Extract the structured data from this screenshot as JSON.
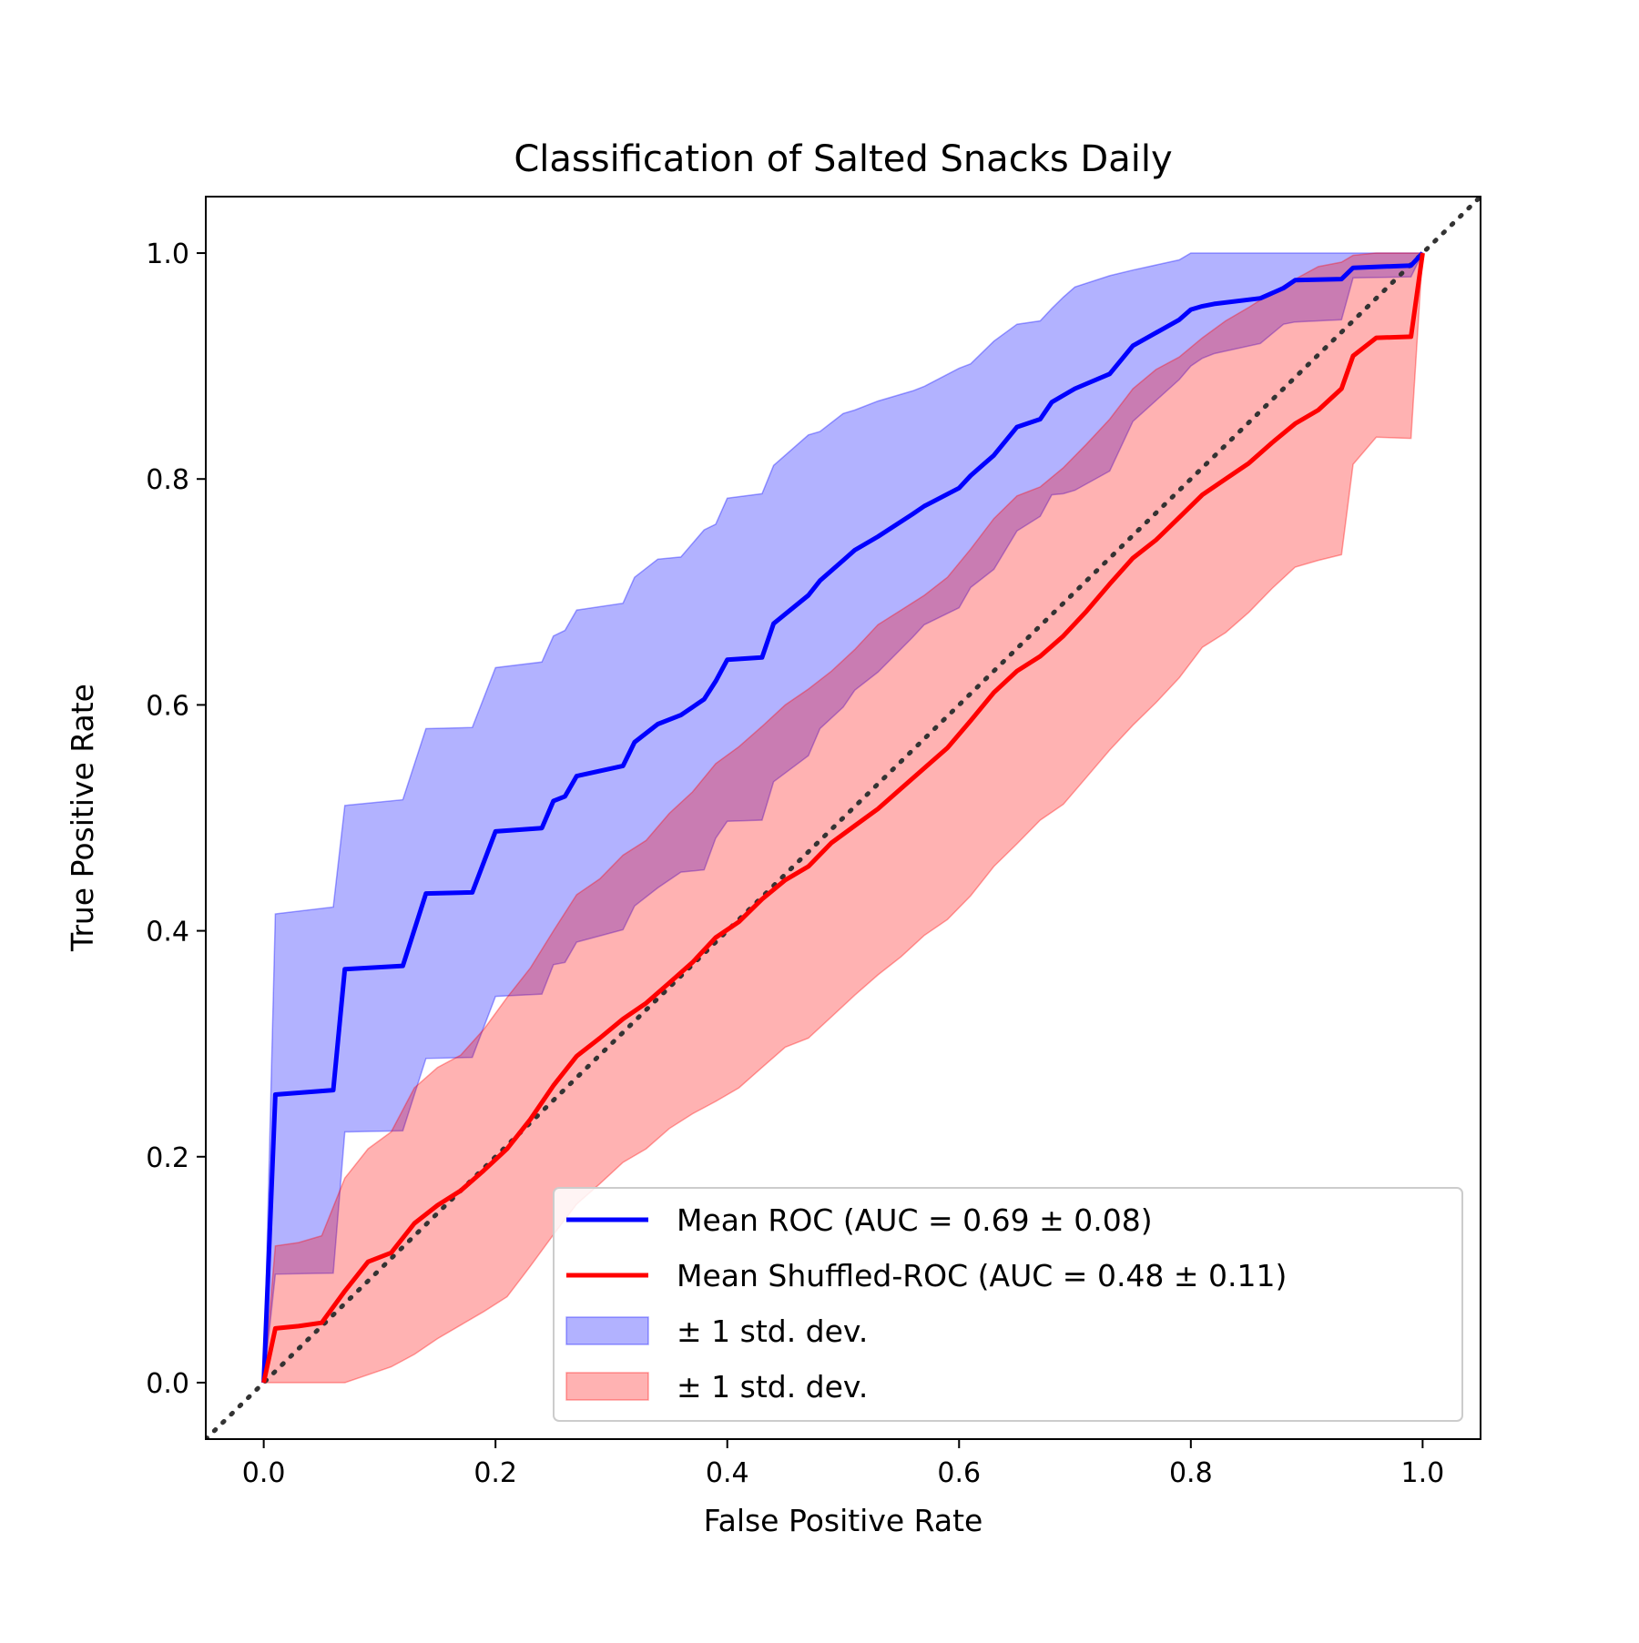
{
  "chart_data": {
    "type": "line",
    "title": "Classification of Salted Snacks Daily",
    "xlabel": "False Positive Rate",
    "ylabel": "True Positive Rate",
    "xlim": [
      -0.05,
      1.05
    ],
    "ylim": [
      -0.05,
      1.05
    ],
    "xticks": [
      "0.0",
      "0.2",
      "0.4",
      "0.6",
      "0.8",
      "1.0"
    ],
    "yticks": [
      "0.0",
      "0.2",
      "0.4",
      "0.6",
      "0.8",
      "1.0"
    ],
    "grid": false,
    "legend_position": "lower-right",
    "chance_line": {
      "x": [
        -0.05,
        1.05
      ],
      "y": [
        -0.05,
        1.05
      ],
      "color": "#333333",
      "style": "dotted"
    },
    "bands": [
      {
        "name": "± 1 std. dev.",
        "color": "#0000ff",
        "x": [
          0,
          0.01,
          0.06,
          0.07,
          0.12,
          0.14,
          0.18,
          0.2,
          0.24,
          0.25,
          0.26,
          0.27,
          0.31,
          0.32,
          0.34,
          0.36,
          0.38,
          0.39,
          0.4,
          0.43,
          0.44,
          0.47,
          0.48,
          0.5,
          0.51,
          0.53,
          0.56,
          0.57,
          0.6,
          0.61,
          0.63,
          0.65,
          0.67,
          0.68,
          0.69,
          0.7,
          0.73,
          0.75,
          0.79,
          0.8,
          0.81,
          0.82,
          0.86,
          0.88,
          0.89,
          0.93,
          0.94,
          0.99,
          1.0
        ],
        "lower": [
          0,
          0.096,
          0.097,
          0.222,
          0.223,
          0.287,
          0.288,
          0.342,
          0.344,
          0.37,
          0.372,
          0.39,
          0.401,
          0.422,
          0.438,
          0.452,
          0.454,
          0.482,
          0.497,
          0.498,
          0.532,
          0.555,
          0.579,
          0.598,
          0.613,
          0.629,
          0.66,
          0.671,
          0.686,
          0.704,
          0.72,
          0.754,
          0.767,
          0.786,
          0.787,
          0.79,
          0.807,
          0.851,
          0.888,
          0.9,
          0.907,
          0.911,
          0.92,
          0.937,
          0.939,
          0.941,
          0.978,
          0.979,
          1.0
        ],
        "upper": [
          0,
          0.415,
          0.421,
          0.511,
          0.516,
          0.579,
          0.58,
          0.633,
          0.638,
          0.661,
          0.666,
          0.684,
          0.69,
          0.713,
          0.729,
          0.731,
          0.755,
          0.76,
          0.783,
          0.787,
          0.812,
          0.839,
          0.842,
          0.858,
          0.861,
          0.869,
          0.878,
          0.882,
          0.898,
          0.902,
          0.922,
          0.937,
          0.94,
          0.951,
          0.961,
          0.97,
          0.98,
          0.985,
          0.994,
          1.0,
          1.0,
          1.0,
          1.0,
          1.0,
          1.0,
          1.0,
          1.0,
          1.0,
          1.0
        ]
      },
      {
        "name": "± 1 std. dev.",
        "color": "#ff0000",
        "x": [
          0,
          0.01,
          0.03,
          0.05,
          0.07,
          0.09,
          0.11,
          0.13,
          0.15,
          0.17,
          0.19,
          0.21,
          0.23,
          0.25,
          0.27,
          0.29,
          0.31,
          0.33,
          0.35,
          0.37,
          0.39,
          0.41,
          0.43,
          0.45,
          0.47,
          0.49,
          0.51,
          0.53,
          0.55,
          0.57,
          0.59,
          0.61,
          0.63,
          0.65,
          0.67,
          0.69,
          0.71,
          0.73,
          0.75,
          0.77,
          0.79,
          0.81,
          0.83,
          0.85,
          0.87,
          0.89,
          0.91,
          0.93,
          0.94,
          0.96,
          0.99,
          1.0
        ],
        "lower": [
          0,
          0,
          0,
          0,
          0,
          0.007,
          0.014,
          0.025,
          0.039,
          0.051,
          0.063,
          0.076,
          0.103,
          0.131,
          0.158,
          0.176,
          0.195,
          0.207,
          0.225,
          0.238,
          0.249,
          0.261,
          0.279,
          0.297,
          0.305,
          0.324,
          0.343,
          0.361,
          0.377,
          0.396,
          0.41,
          0.431,
          0.457,
          0.477,
          0.498,
          0.512,
          0.536,
          0.56,
          0.582,
          0.602,
          0.624,
          0.651,
          0.664,
          0.682,
          0.703,
          0.722,
          0.728,
          0.733,
          0.813,
          0.837,
          0.836,
          1.0
        ],
        "upper": [
          0,
          0.121,
          0.124,
          0.13,
          0.181,
          0.207,
          0.222,
          0.261,
          0.279,
          0.29,
          0.313,
          0.341,
          0.367,
          0.4,
          0.432,
          0.446,
          0.467,
          0.48,
          0.504,
          0.523,
          0.548,
          0.563,
          0.581,
          0.6,
          0.614,
          0.63,
          0.649,
          0.671,
          0.684,
          0.697,
          0.713,
          0.738,
          0.765,
          0.785,
          0.793,
          0.81,
          0.831,
          0.853,
          0.88,
          0.897,
          0.908,
          0.925,
          0.94,
          0.952,
          0.965,
          0.977,
          0.988,
          0.992,
          0.998,
          1.0,
          1.0,
          1.0
        ]
      }
    ],
    "series": [
      {
        "name": "Mean ROC (AUC = 0.69 ± 0.08)",
        "color": "#0000ff",
        "x": [
          0,
          0.01,
          0.06,
          0.07,
          0.12,
          0.14,
          0.18,
          0.2,
          0.24,
          0.25,
          0.26,
          0.27,
          0.31,
          0.32,
          0.34,
          0.36,
          0.38,
          0.39,
          0.4,
          0.43,
          0.44,
          0.47,
          0.48,
          0.5,
          0.51,
          0.53,
          0.56,
          0.57,
          0.6,
          0.61,
          0.63,
          0.65,
          0.67,
          0.68,
          0.69,
          0.7,
          0.73,
          0.75,
          0.79,
          0.8,
          0.81,
          0.82,
          0.86,
          0.88,
          0.89,
          0.93,
          0.94,
          0.99,
          1.0
        ],
        "y": [
          0,
          0.255,
          0.259,
          0.366,
          0.369,
          0.433,
          0.434,
          0.488,
          0.491,
          0.515,
          0.519,
          0.537,
          0.546,
          0.567,
          0.583,
          0.591,
          0.605,
          0.621,
          0.64,
          0.642,
          0.672,
          0.697,
          0.71,
          0.728,
          0.737,
          0.749,
          0.769,
          0.776,
          0.792,
          0.803,
          0.821,
          0.846,
          0.853,
          0.868,
          0.874,
          0.88,
          0.893,
          0.918,
          0.941,
          0.95,
          0.953,
          0.955,
          0.96,
          0.969,
          0.976,
          0.977,
          0.987,
          0.989,
          1.0
        ]
      },
      {
        "name": "Mean Shuffled-ROC (AUC = 0.48 ± 0.11)",
        "color": "#ff0000",
        "x": [
          0,
          0.01,
          0.03,
          0.05,
          0.07,
          0.09,
          0.11,
          0.13,
          0.15,
          0.17,
          0.19,
          0.21,
          0.23,
          0.25,
          0.27,
          0.29,
          0.31,
          0.33,
          0.35,
          0.37,
          0.39,
          0.41,
          0.43,
          0.45,
          0.47,
          0.49,
          0.51,
          0.53,
          0.55,
          0.57,
          0.59,
          0.61,
          0.63,
          0.65,
          0.67,
          0.69,
          0.71,
          0.73,
          0.75,
          0.77,
          0.79,
          0.81,
          0.83,
          0.85,
          0.87,
          0.89,
          0.91,
          0.93,
          0.94,
          0.96,
          0.99,
          1.0
        ],
        "y": [
          0,
          0.048,
          0.05,
          0.053,
          0.081,
          0.107,
          0.115,
          0.141,
          0.157,
          0.17,
          0.188,
          0.207,
          0.233,
          0.263,
          0.289,
          0.305,
          0.322,
          0.336,
          0.354,
          0.372,
          0.394,
          0.408,
          0.428,
          0.445,
          0.457,
          0.478,
          0.493,
          0.508,
          0.526,
          0.544,
          0.562,
          0.586,
          0.611,
          0.63,
          0.643,
          0.661,
          0.683,
          0.707,
          0.73,
          0.746,
          0.766,
          0.786,
          0.8,
          0.814,
          0.832,
          0.849,
          0.861,
          0.88,
          0.909,
          0.925,
          0.926,
          1.0
        ]
      }
    ],
    "legend": [
      {
        "label": "Mean ROC (AUC = 0.69 ± 0.08)",
        "kind": "line",
        "color": "#0000ff"
      },
      {
        "label": "Mean Shuffled-ROC (AUC = 0.48 ± 0.11)",
        "kind": "line",
        "color": "#ff0000"
      },
      {
        "label": "± 1 std. dev.",
        "kind": "patch",
        "color": "#0000ff"
      },
      {
        "label": "± 1 std. dev.",
        "kind": "patch",
        "color": "#ff0000"
      }
    ]
  }
}
